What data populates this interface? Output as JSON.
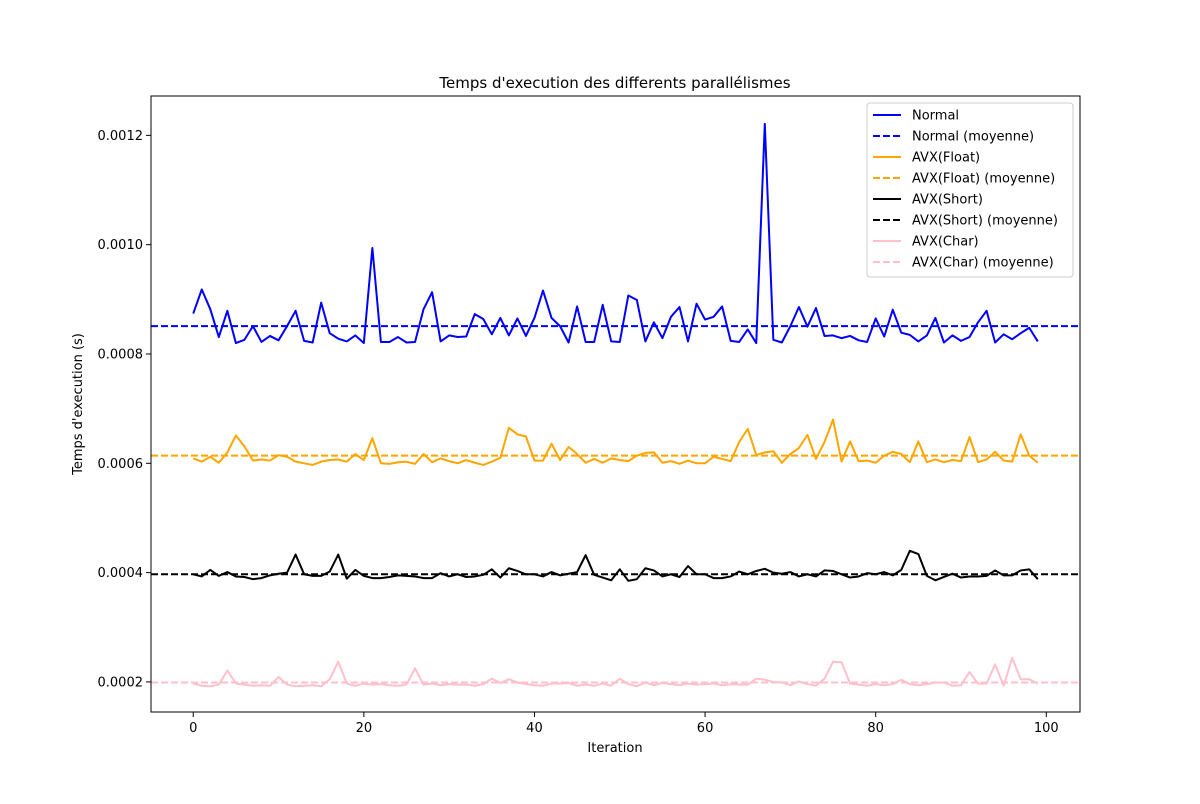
{
  "chart_data": {
    "type": "line",
    "title": "Temps d'execution des differents parallélismes",
    "xlabel": "Iteration",
    "ylabel": "Temps d'execution (s)",
    "xlim": [
      -4.95,
      103.95
    ],
    "ylim": [
      0.000145,
      0.001272
    ],
    "xticks": [
      0,
      20,
      40,
      60,
      80,
      100
    ],
    "yticks": [
      0.0002,
      0.0004,
      0.0006,
      0.0008,
      0.001,
      0.0012
    ],
    "ytick_labels": [
      "0.0002",
      "0.0004",
      "0.0006",
      "0.0008",
      "0.0010",
      "0.0012"
    ],
    "grid": false,
    "legend_position": "top-right",
    "x": [
      0,
      1,
      2,
      3,
      4,
      5,
      6,
      7,
      8,
      9,
      10,
      11,
      12,
      13,
      14,
      15,
      16,
      17,
      18,
      19,
      20,
      21,
      22,
      23,
      24,
      25,
      26,
      27,
      28,
      29,
      30,
      31,
      32,
      33,
      34,
      35,
      36,
      37,
      38,
      39,
      40,
      41,
      42,
      43,
      44,
      45,
      46,
      47,
      48,
      49,
      50,
      51,
      52,
      53,
      54,
      55,
      56,
      57,
      58,
      59,
      60,
      61,
      62,
      63,
      64,
      65,
      66,
      67,
      68,
      69,
      70,
      71,
      72,
      73,
      74,
      75,
      76,
      77,
      78,
      79,
      80,
      81,
      82,
      83,
      84,
      85,
      86,
      87,
      88,
      89,
      90,
      91,
      92,
      93,
      94,
      95,
      96,
      97,
      98,
      99
    ],
    "series": [
      {
        "name": "Normal",
        "color": "#0000ff",
        "style": "solid",
        "values": [
          0.000874,
          0.000918,
          0.000882,
          0.000831,
          0.000879,
          0.00082,
          0.000826,
          0.000851,
          0.000822,
          0.000833,
          0.000825,
          0.000851,
          0.000879,
          0.000824,
          0.000821,
          0.000894,
          0.000838,
          0.000828,
          0.000823,
          0.000834,
          0.00082,
          0.000994,
          0.000822,
          0.000822,
          0.000831,
          0.000821,
          0.000822,
          0.000882,
          0.000913,
          0.000823,
          0.000834,
          0.000831,
          0.000832,
          0.000873,
          0.000864,
          0.000836,
          0.000866,
          0.000834,
          0.000865,
          0.000833,
          0.000866,
          0.000916,
          0.000866,
          0.000851,
          0.000821,
          0.000887,
          0.000822,
          0.000822,
          0.00089,
          0.000823,
          0.000822,
          0.000907,
          0.000899,
          0.000823,
          0.000858,
          0.000829,
          0.000868,
          0.000886,
          0.000823,
          0.000892,
          0.000863,
          0.000868,
          0.000887,
          0.000824,
          0.000822,
          0.000845,
          0.00082,
          0.001221,
          0.000826,
          0.000821,
          0.000851,
          0.000886,
          0.00085,
          0.000884,
          0.000833,
          0.000834,
          0.000829,
          0.000833,
          0.000825,
          0.000822,
          0.000865,
          0.000832,
          0.000881,
          0.000839,
          0.000835,
          0.000823,
          0.000834,
          0.000866,
          0.000821,
          0.000834,
          0.000824,
          0.000831,
          0.000858,
          0.000879,
          0.000821,
          0.000836,
          0.000827,
          0.000838,
          0.000848,
          0.000823
        ]
      },
      {
        "name": "Normal (moyenne)",
        "color": "#0000ff",
        "style": "dashed",
        "mean": 0.000851
      },
      {
        "name": "AVX(Float)",
        "color": "#ffa500",
        "style": "solid",
        "values": [
          0.000609,
          0.000603,
          0.000612,
          0.000601,
          0.00062,
          0.000651,
          0.000631,
          0.000605,
          0.000607,
          0.000605,
          0.000615,
          0.000612,
          0.000603,
          0.0006,
          0.000597,
          0.000603,
          0.000606,
          0.000607,
          0.000603,
          0.000617,
          0.000606,
          0.000646,
          0.0006,
          0.000599,
          0.000602,
          0.000603,
          0.000599,
          0.000617,
          0.000602,
          0.000609,
          0.000604,
          0.0006,
          0.000606,
          0.000601,
          0.000597,
          0.000603,
          0.00061,
          0.000665,
          0.000653,
          0.000649,
          0.000605,
          0.000605,
          0.000636,
          0.000606,
          0.00063,
          0.000617,
          0.000601,
          0.000608,
          0.000601,
          0.000609,
          0.000606,
          0.000604,
          0.000614,
          0.000619,
          0.00062,
          0.000601,
          0.000604,
          0.000599,
          0.000605,
          0.0006,
          0.0006,
          0.000612,
          0.000608,
          0.000604,
          0.000639,
          0.000663,
          0.000615,
          0.00062,
          0.000622,
          0.000601,
          0.000617,
          0.000628,
          0.000652,
          0.000608,
          0.000639,
          0.00068,
          0.000603,
          0.00064,
          0.000604,
          0.000605,
          0.000601,
          0.000614,
          0.000621,
          0.000617,
          0.000602,
          0.00064,
          0.000602,
          0.000607,
          0.000602,
          0.000606,
          0.000604,
          0.000648,
          0.000602,
          0.000607,
          0.000621,
          0.000605,
          0.000603,
          0.000653,
          0.000614,
          0.000601
        ]
      },
      {
        "name": "AVX(Float) (moyenne)",
        "color": "#ffa500",
        "style": "dashed",
        "mean": 0.000614
      },
      {
        "name": "AVX(Short)",
        "color": "#000000",
        "style": "solid",
        "values": [
          0.000397,
          0.000393,
          0.000405,
          0.000394,
          0.000401,
          0.000393,
          0.000392,
          0.000388,
          0.00039,
          0.000395,
          0.000398,
          0.0004,
          0.000433,
          0.000397,
          0.000394,
          0.000394,
          0.000402,
          0.000433,
          0.000389,
          0.000405,
          0.000394,
          0.00039,
          0.00039,
          0.000392,
          0.000395,
          0.000394,
          0.000393,
          0.00039,
          0.00039,
          0.000399,
          0.000393,
          0.000397,
          0.000392,
          0.000393,
          0.000396,
          0.000406,
          0.000391,
          0.000408,
          0.000403,
          0.000397,
          0.000397,
          0.000393,
          0.000401,
          0.000395,
          0.000398,
          0.000401,
          0.000432,
          0.000396,
          0.000391,
          0.000386,
          0.000406,
          0.000385,
          0.000388,
          0.000408,
          0.000404,
          0.000393,
          0.000397,
          0.000392,
          0.000412,
          0.000397,
          0.000397,
          0.00039,
          0.00039,
          0.000393,
          0.000402,
          0.000397,
          0.000403,
          0.000407,
          0.0004,
          0.000398,
          0.000401,
          0.000393,
          0.000397,
          0.000393,
          0.000404,
          0.000403,
          0.000397,
          0.000391,
          0.000393,
          0.000399,
          0.000397,
          0.000401,
          0.000395,
          0.000405,
          0.00044,
          0.000434,
          0.000394,
          0.000386,
          0.000392,
          0.000398,
          0.000391,
          0.000393,
          0.000393,
          0.000394,
          0.000404,
          0.000395,
          0.000395,
          0.000404,
          0.000406,
          0.000388
        ]
      },
      {
        "name": "AVX(Short) (moyenne)",
        "color": "#000000",
        "style": "dashed",
        "mean": 0.000397
      },
      {
        "name": "AVX(Char)",
        "color": "#ffc0cb",
        "style": "solid",
        "values": [
          0.000197,
          0.000193,
          0.000192,
          0.000195,
          0.000221,
          0.000197,
          0.000195,
          0.000193,
          0.000194,
          0.000193,
          0.000209,
          0.000195,
          0.000192,
          0.000193,
          0.000194,
          0.000192,
          0.000205,
          0.000237,
          0.000197,
          0.000193,
          0.000197,
          0.000195,
          0.000196,
          0.000194,
          0.000193,
          0.000195,
          0.000225,
          0.000195,
          0.000197,
          0.000194,
          0.000196,
          0.000195,
          0.000195,
          0.000193,
          0.000196,
          0.000206,
          0.000198,
          0.000205,
          0.000199,
          0.000196,
          0.000194,
          0.000193,
          0.000197,
          0.000197,
          0.000198,
          0.000193,
          0.000195,
          0.000193,
          0.000197,
          0.000193,
          0.000206,
          0.000196,
          0.000192,
          0.000199,
          0.000194,
          0.000198,
          0.000196,
          0.000194,
          0.000197,
          0.000195,
          0.000196,
          0.000197,
          0.000194,
          0.000196,
          0.000195,
          0.000195,
          0.000206,
          0.000204,
          0.0002,
          0.000199,
          0.000194,
          0.000201,
          0.000196,
          0.000193,
          0.000206,
          0.000237,
          0.000236,
          0.000197,
          0.000195,
          0.000193,
          0.000196,
          0.000194,
          0.000196,
          0.000204,
          0.000196,
          0.000194,
          0.000196,
          0.000199,
          0.000199,
          0.000193,
          0.000194,
          0.000218,
          0.000197,
          0.000197,
          0.000232,
          0.000193,
          0.000244,
          0.000205,
          0.000205,
          0.000197
        ]
      },
      {
        "name": "AVX(Char) (moyenne)",
        "color": "#ffc0cb",
        "style": "dashed",
        "mean": 0.000199
      }
    ]
  }
}
